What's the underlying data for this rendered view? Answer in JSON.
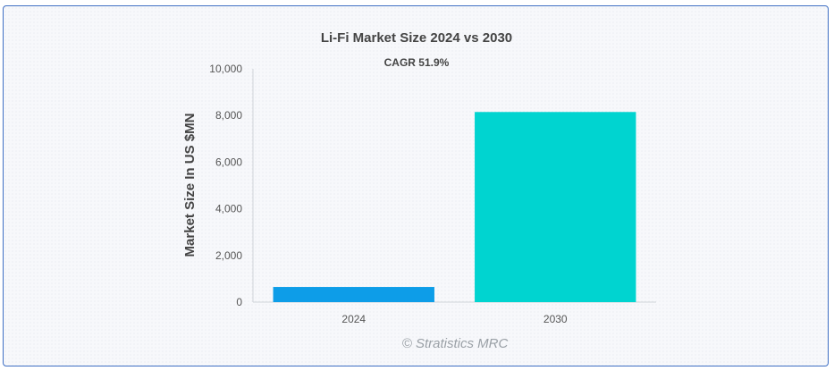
{
  "chart_data": {
    "type": "bar",
    "title": "Li-Fi Market Size 2024 vs 2030",
    "subtitle": "CAGR 51.9%",
    "xlabel": "",
    "ylabel": "Market Size In US $MN",
    "categories": [
      "2024",
      "2030"
    ],
    "values": [
      650,
      8150
    ],
    "bar_colors": [
      "#0d9de8",
      "#00d4d0"
    ],
    "ylim": [
      0,
      10000
    ],
    "yticks": [
      0,
      2000,
      4000,
      6000,
      8000,
      10000
    ],
    "ytick_labels": [
      "0",
      "2,000",
      "4,000",
      "6,000",
      "8,000",
      "10,000"
    ],
    "grid": false,
    "legend": "none"
  },
  "credit": "© Stratistics MRC"
}
